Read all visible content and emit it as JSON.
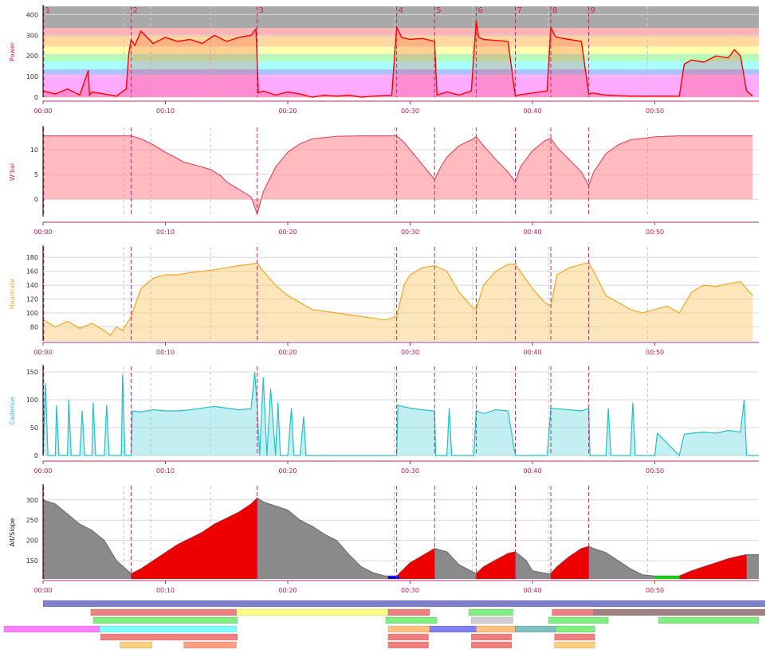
{
  "charts": {
    "x_ticks": [
      "00:00",
      "00:10",
      "00:20",
      "00:30",
      "00:40",
      "00:50"
    ],
    "x_minutes": [
      0,
      10,
      20,
      30,
      40,
      50
    ],
    "x_range_minutes": [
      0,
      58.5
    ],
    "interval_markers": [
      {
        "label": "1",
        "minute": 0.05
      },
      {
        "label": "2",
        "minute": 7.2
      },
      {
        "label": "3",
        "minute": 17.5
      },
      {
        "label": "4",
        "minute": 28.9
      },
      {
        "label": "5",
        "minute": 32.0
      },
      {
        "label": "6",
        "minute": 35.4
      },
      {
        "label": "7",
        "minute": 38.6
      },
      {
        "label": "8",
        "minute": 41.5
      },
      {
        "label": "9",
        "minute": 44.6
      }
    ],
    "grey_markers_minutes": [
      6.6,
      8.8,
      13.7,
      28.7,
      35.1,
      41.3,
      49.4
    ]
  },
  "chart_data": [
    {
      "type": "line",
      "ylabel": "Power",
      "color": "#ff0000",
      "fill": "rgba(255,0,0,0.18)",
      "ylim": [
        0,
        440
      ],
      "yticks": [
        0,
        100,
        200,
        300,
        400
      ],
      "zones": [
        {
          "from": 0,
          "to": 110,
          "color": "#ffaaff"
        },
        {
          "from": 110,
          "to": 135,
          "color": "#a9c4ff"
        },
        {
          "from": 135,
          "to": 175,
          "color": "#aaffff"
        },
        {
          "from": 175,
          "to": 210,
          "color": "#b3ffb3"
        },
        {
          "from": 210,
          "to": 245,
          "color": "#ffffb0"
        },
        {
          "from": 245,
          "to": 295,
          "color": "#ffd9a0"
        },
        {
          "from": 295,
          "to": 335,
          "color": "#ffb3b3"
        },
        {
          "from": 335,
          "to": 440,
          "color": "#a9a9a9"
        }
      ],
      "x": [
        0,
        1,
        2,
        3,
        3.7,
        3.8,
        4,
        5,
        6,
        6.8,
        7.0,
        7.2,
        7.5,
        8,
        9,
        10,
        11,
        12,
        13,
        14,
        15,
        16,
        17,
        17.4,
        17.6,
        18,
        19,
        20,
        21,
        22,
        23,
        24,
        25,
        26,
        27,
        28.5,
        28.9,
        29.3,
        30,
        31,
        32,
        32.2,
        33,
        34,
        35,
        35.4,
        35.6,
        36,
        37,
        38,
        38.6,
        38.8,
        40,
        41.2,
        41.5,
        41.8,
        42,
        43,
        44,
        44.6,
        44.9,
        46,
        48,
        50,
        52,
        52.4,
        53,
        54,
        55,
        56,
        56.5,
        57,
        57.5,
        58
      ],
      "values": [
        30,
        15,
        40,
        10,
        130,
        10,
        25,
        15,
        5,
        40,
        210,
        280,
        250,
        320,
        260,
        290,
        270,
        280,
        260,
        300,
        270,
        290,
        300,
        330,
        20,
        30,
        10,
        25,
        15,
        0,
        10,
        5,
        10,
        0,
        5,
        10,
        340,
        290,
        280,
        285,
        270,
        10,
        25,
        10,
        30,
        370,
        290,
        280,
        275,
        270,
        5,
        10,
        20,
        30,
        340,
        300,
        290,
        280,
        270,
        15,
        20,
        10,
        5,
        5,
        5,
        160,
        180,
        170,
        200,
        190,
        230,
        200,
        30,
        5
      ]
    },
    {
      "type": "area",
      "ylabel": "W'bal",
      "color": "#e05060",
      "fill": "rgba(255,120,130,0.5)",
      "ylim": [
        -3.5,
        14.5
      ],
      "yticks": [
        0,
        5,
        10
      ],
      "x": [
        0,
        7.2,
        8,
        9,
        10,
        11,
        11.5,
        12,
        13,
        13.7,
        14.5,
        15,
        16,
        17,
        17.5,
        18,
        19,
        20,
        21,
        22,
        24,
        26,
        28.9,
        29.5,
        30,
        31,
        32,
        32.5,
        33,
        34,
        35,
        35.4,
        36,
        37,
        38,
        38.6,
        39,
        40,
        41,
        41.5,
        42,
        43,
        44,
        44.6,
        45,
        46,
        47,
        48,
        50,
        52,
        54,
        56,
        58
      ],
      "values": [
        12.8,
        12.8,
        12.2,
        11.0,
        9.5,
        8.2,
        7.5,
        7.2,
        6.5,
        6.0,
        4.8,
        3.5,
        2.0,
        0.5,
        -3.0,
        1.5,
        6.5,
        9.5,
        11.2,
        12.2,
        12.7,
        12.8,
        12.8,
        11.5,
        10.0,
        7.0,
        4.0,
        6.5,
        8.5,
        10.8,
        12.0,
        12.6,
        10.8,
        8.0,
        5.5,
        3.5,
        6.5,
        9.8,
        11.8,
        12.3,
        10.5,
        8.0,
        5.5,
        2.8,
        5.5,
        9.2,
        11.0,
        12.0,
        12.6,
        12.8,
        12.8,
        12.8,
        12.8
      ]
    },
    {
      "type": "area",
      "ylabel": "Heartrate",
      "color": "#f5a623",
      "fill": "rgba(252,205,120,0.5)",
      "ylim": [
        60,
        195
      ],
      "yticks": [
        80,
        100,
        120,
        140,
        160,
        180
      ],
      "x": [
        0,
        1,
        2,
        3,
        4,
        5,
        5.5,
        6,
        6.5,
        7.2,
        8,
        9,
        10,
        11,
        12,
        13,
        14,
        15,
        16,
        17,
        17.5,
        18,
        19,
        20,
        21,
        22,
        24,
        26,
        28,
        28.9,
        29.5,
        30,
        31,
        32,
        33,
        34,
        35,
        35.4,
        36,
        37,
        38,
        38.6,
        39,
        40,
        41,
        41.5,
        42,
        43,
        44,
        44.6,
        45,
        46,
        47,
        48,
        49,
        50,
        51,
        52,
        53,
        54,
        55,
        56,
        57,
        58
      ],
      "values": [
        90,
        80,
        88,
        78,
        85,
        75,
        68,
        80,
        75,
        95,
        135,
        150,
        155,
        155,
        158,
        160,
        162,
        165,
        168,
        170,
        172,
        160,
        140,
        125,
        115,
        105,
        100,
        95,
        90,
        95,
        140,
        155,
        165,
        168,
        160,
        130,
        110,
        105,
        140,
        160,
        170,
        170,
        160,
        135,
        115,
        110,
        155,
        165,
        170,
        172,
        160,
        125,
        115,
        105,
        100,
        105,
        110,
        100,
        130,
        140,
        138,
        142,
        145,
        125
      ]
    },
    {
      "type": "area",
      "ylabel": "Cadence",
      "color": "#22c1c8",
      "fill": "rgba(120,220,225,0.45)",
      "ylim": [
        0,
        160
      ],
      "yticks": [
        0,
        50,
        100,
        150
      ],
      "x": [
        0,
        0.2,
        0.4,
        1.0,
        1.1,
        1.3,
        2.0,
        2.1,
        2.3,
        3.0,
        3.2,
        3.4,
        4.0,
        4.1,
        4.3,
        5.0,
        5.2,
        5.4,
        6.4,
        6.5,
        6.7,
        7.2,
        7.3,
        8,
        9,
        10,
        11,
        12,
        13,
        14,
        15,
        16,
        17,
        17.3,
        17.5,
        17.7,
        18,
        18.3,
        18.6,
        19,
        19.2,
        19.4,
        20,
        20.3,
        20.5,
        21,
        21.3,
        21.5,
        22,
        24,
        26,
        28.5,
        28.9,
        29,
        30,
        31,
        32,
        32.1,
        33,
        33.2,
        33.4,
        35.2,
        35.4,
        36,
        37,
        38,
        38.6,
        38.7,
        41.2,
        41.5,
        42,
        43,
        44,
        44.6,
        44.7,
        46,
        46.2,
        46.4,
        48,
        48.2,
        48.4,
        50,
        50.2,
        52,
        52.4,
        53,
        54,
        55,
        56,
        57,
        57.3,
        57.5,
        58.5
      ],
      "values": [
        0,
        130,
        0,
        0,
        90,
        0,
        0,
        100,
        0,
        0,
        80,
        0,
        0,
        95,
        0,
        0,
        90,
        0,
        0,
        145,
        0,
        0,
        80,
        78,
        82,
        80,
        80,
        82,
        85,
        88,
        85,
        82,
        84,
        150,
        90,
        0,
        140,
        0,
        120,
        0,
        95,
        0,
        0,
        85,
        0,
        0,
        70,
        0,
        0,
        0,
        0,
        0,
        0,
        90,
        85,
        82,
        80,
        0,
        0,
        85,
        0,
        0,
        80,
        75,
        82,
        80,
        0,
        0,
        0,
        85,
        84,
        82,
        80,
        84,
        0,
        0,
        85,
        0,
        0,
        95,
        0,
        0,
        40,
        0,
        38,
        40,
        42,
        40,
        45,
        42,
        100,
        0,
        0
      ]
    },
    {
      "type": "area",
      "ylabel": "Alt/Slope",
      "color": "#707070",
      "fill": "#8a8a8a",
      "ylim": [
        105,
        335
      ],
      "yticks": [
        150,
        200,
        250,
        300
      ],
      "x": [
        0,
        1,
        2,
        3,
        4,
        5,
        6,
        7.2,
        8,
        9,
        10,
        11,
        12,
        13,
        14,
        15,
        16,
        17,
        17.5,
        18,
        19,
        20,
        21,
        22,
        23,
        24,
        25,
        26,
        27,
        28,
        28.9,
        30,
        32,
        33,
        34,
        35.4,
        36,
        37,
        38,
        38.6,
        39.5,
        40,
        41.2,
        41.5,
        42,
        43,
        44,
        44.6,
        45,
        46,
        47,
        48,
        49,
        50,
        51,
        52,
        53,
        54,
        55,
        56,
        57,
        57.5,
        58.5
      ],
      "values": [
        300,
        290,
        265,
        240,
        225,
        200,
        150,
        118,
        130,
        150,
        170,
        190,
        205,
        220,
        240,
        255,
        270,
        290,
        305,
        295,
        285,
        275,
        250,
        235,
        215,
        200,
        165,
        135,
        120,
        112,
        112,
        145,
        180,
        172,
        140,
        118,
        135,
        152,
        168,
        172,
        150,
        125,
        118,
        118,
        135,
        160,
        180,
        185,
        180,
        170,
        150,
        130,
        115,
        112,
        112,
        112,
        125,
        135,
        145,
        155,
        162,
        165,
        165
      ]
    }
  ]
}
